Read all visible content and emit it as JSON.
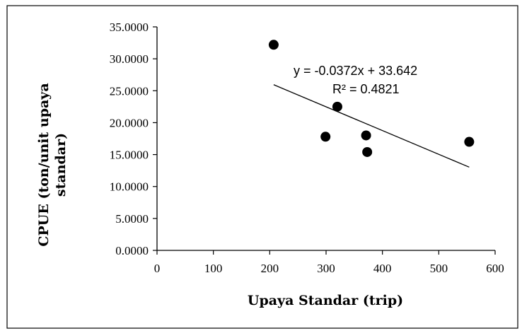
{
  "chart_data": {
    "type": "scatter",
    "xlabel": "Upaya Standar (trip)",
    "ylabel_lines": [
      "CPUE (ton/unit upaya",
      "standar)"
    ],
    "xlim": [
      0,
      600
    ],
    "ylim": [
      0,
      35
    ],
    "x_ticks": [
      0,
      100,
      200,
      300,
      400,
      500,
      600
    ],
    "x_tick_labels": [
      "0",
      "100",
      "200",
      "300",
      "400",
      "500",
      "600"
    ],
    "y_ticks": [
      0,
      5,
      10,
      15,
      20,
      25,
      30,
      35
    ],
    "y_tick_labels": [
      "0.0000",
      "5.0000",
      "10.0000",
      "15.0000",
      "20.0000",
      "25.0000",
      "30.0000",
      "35.0000"
    ],
    "grid": false,
    "legend": "none",
    "point_color": "#000000",
    "points": [
      {
        "x": 207,
        "y": 32.2
      },
      {
        "x": 299,
        "y": 17.8
      },
      {
        "x": 320,
        "y": 22.5
      },
      {
        "x": 371,
        "y": 18.0
      },
      {
        "x": 373,
        "y": 15.4
      },
      {
        "x": 554,
        "y": 17.0
      }
    ],
    "trendline": {
      "slope": -0.0372,
      "intercept": 33.642,
      "x_range": [
        207,
        554
      ],
      "equation_label": "y = -0.0372x + 33.642",
      "r2_label": "R² = 0.4821"
    }
  }
}
